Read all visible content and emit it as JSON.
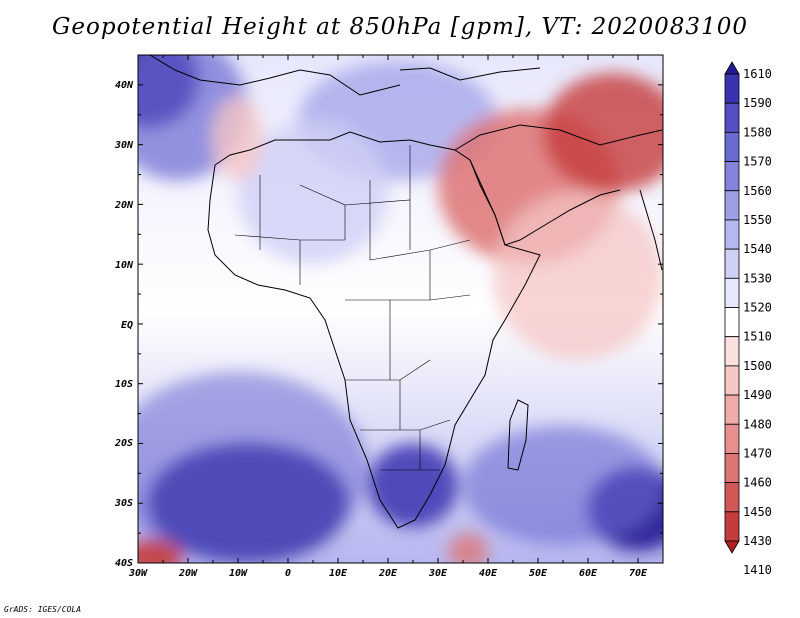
{
  "title": "Geopotential Height at 850hPa [gpm], VT: 2020083100",
  "credit": "GrADS: IGES/COLA",
  "map": {
    "lon_labels": [
      "30W",
      "20W",
      "10W",
      "0",
      "10E",
      "20E",
      "30E",
      "40E",
      "50E",
      "60E",
      "70E"
    ],
    "lat_labels": [
      "40N",
      "30N",
      "20N",
      "10N",
      "EQ",
      "10S",
      "20S",
      "30S",
      "40S"
    ],
    "lon_range": [
      -30,
      75
    ],
    "lat_range": [
      -40,
      45
    ]
  },
  "colorbar": {
    "levels": [
      "1610",
      "1590",
      "1580",
      "1570",
      "1560",
      "1550",
      "1540",
      "1530",
      "1520",
      "1510",
      "1500",
      "1490",
      "1480",
      "1470",
      "1460",
      "1450",
      "1430",
      "1410"
    ],
    "colors": [
      "#241b94",
      "#3a33b0",
      "#5450c4",
      "#6b69d2",
      "#8584dd",
      "#9e9ee7",
      "#b6b7ef",
      "#cfd0f6",
      "#e7e8fc",
      "#ffffff",
      "#fbe0e0",
      "#f6c6c6",
      "#efaaaa",
      "#e78f8f",
      "#de7474",
      "#d35959",
      "#c53c3c",
      "#b11f1f"
    ]
  },
  "field_blobs": [
    {
      "name": "nw-atlantic-high",
      "lon": -28,
      "lat": 41,
      "rx": 10,
      "ry": 8,
      "color": "#241b94",
      "opacity": 0.95
    },
    {
      "name": "north-atlantic-ridge",
      "lon": -22,
      "lat": 36,
      "rx": 14,
      "ry": 12,
      "color": "#6b69d2",
      "opacity": 0.7
    },
    {
      "name": "mediterranean-blue",
      "lon": 22,
      "lat": 34,
      "rx": 20,
      "ry": 10,
      "color": "#9e9ee7",
      "opacity": 0.7
    },
    {
      "name": "sahara-light",
      "lon": 5,
      "lat": 22,
      "rx": 15,
      "ry": 12,
      "color": "#cfd0f6",
      "opacity": 0.8
    },
    {
      "name": "iberia-warm",
      "lon": -10,
      "lat": 31,
      "rx": 5,
      "ry": 7,
      "color": "#f6c6c6",
      "opacity": 0.8
    },
    {
      "name": "arabian-low",
      "lon": 48,
      "lat": 23,
      "rx": 18,
      "ry": 13,
      "color": "#de7474",
      "opacity": 0.85
    },
    {
      "name": "iran-low",
      "lon": 65,
      "lat": 32,
      "rx": 14,
      "ry": 10,
      "color": "#c53c3c",
      "opacity": 0.8
    },
    {
      "name": "indian-ocean-red",
      "lon": 58,
      "lat": 8,
      "rx": 17,
      "ry": 14,
      "color": "#f6c6c6",
      "opacity": 0.75
    },
    {
      "name": "south-atlantic-high",
      "lon": -8,
      "lat": -30,
      "rx": 20,
      "ry": 10,
      "color": "#241b94",
      "opacity": 0.95
    },
    {
      "name": "south-atlantic-ridge",
      "lon": -10,
      "lat": -24,
      "rx": 26,
      "ry": 16,
      "color": "#6b69d2",
      "opacity": 0.55
    },
    {
      "name": "south-africa-high",
      "lon": 25,
      "lat": -27,
      "rx": 9,
      "ry": 7,
      "color": "#3a33b0",
      "opacity": 0.85
    },
    {
      "name": "indian-ocean-high",
      "lon": 70,
      "lat": -31,
      "rx": 10,
      "ry": 7,
      "color": "#241b94",
      "opacity": 0.9
    },
    {
      "name": "mascarene-ridge",
      "lon": 55,
      "lat": -27,
      "rx": 20,
      "ry": 10,
      "color": "#6b69d2",
      "opacity": 0.6
    },
    {
      "name": "southern-trough-sw",
      "lon": -27,
      "lat": -39,
      "rx": 6,
      "ry": 3,
      "color": "#c53c3c",
      "opacity": 0.9
    },
    {
      "name": "southern-trough-s",
      "lon": 36,
      "lat": -38,
      "rx": 4,
      "ry": 3,
      "color": "#de7474",
      "opacity": 0.8
    }
  ]
}
